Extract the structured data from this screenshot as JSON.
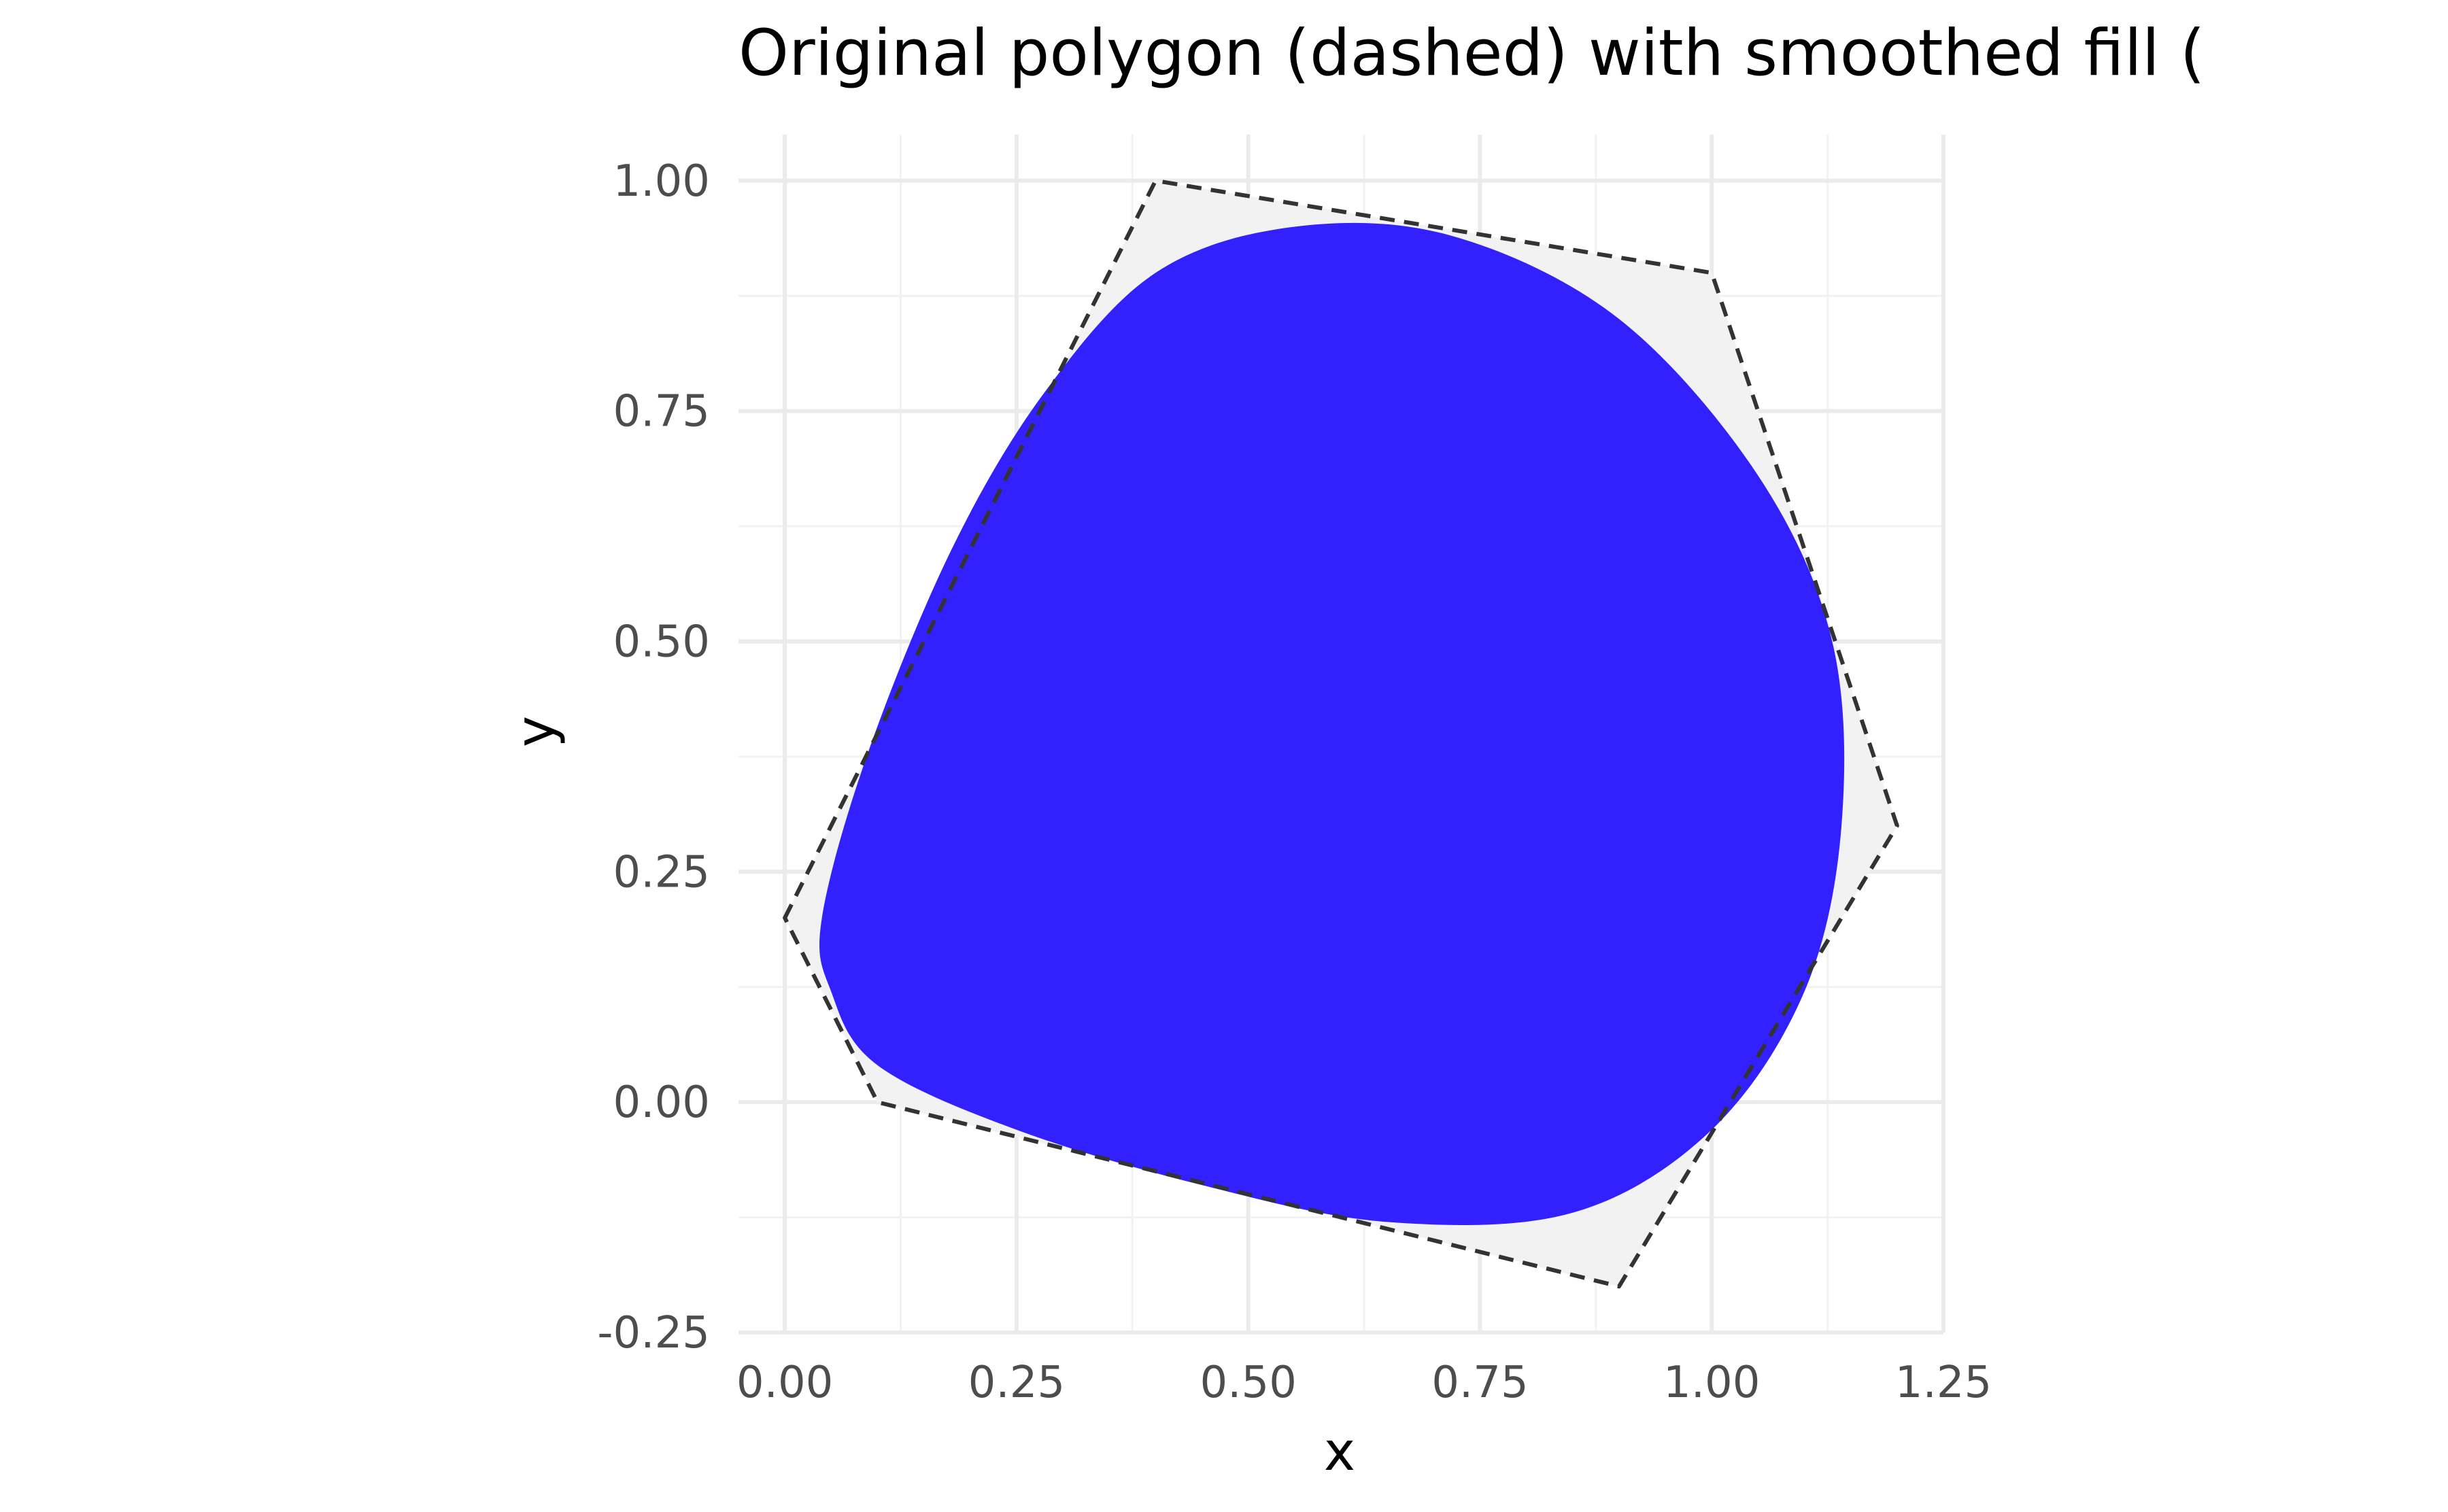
{
  "chart_data": {
    "type": "area",
    "title": "Original polygon (dashed) with smoothed fill (",
    "xlabel": "x",
    "ylabel": "y",
    "xlim": [
      -0.05,
      1.25
    ],
    "ylim": [
      -0.25,
      1.05
    ],
    "x_ticks": [
      0.0,
      0.25,
      0.5,
      0.75,
      1.0,
      1.25
    ],
    "x_tick_labels": [
      "0.00",
      "0.25",
      "0.50",
      "0.75",
      "1.00",
      "1.25"
    ],
    "y_ticks": [
      -0.25,
      0.0,
      0.25,
      0.5,
      0.75,
      1.0
    ],
    "y_tick_labels": [
      "-0.25",
      "0.00",
      "0.25",
      "0.50",
      "0.75",
      "1.00"
    ],
    "grid": true,
    "legend": "none",
    "series": [
      {
        "role": "original polygon",
        "style": "dashed outline with light grey fill",
        "points": [
          [
            0.0,
            0.2
          ],
          [
            0.4,
            1.0
          ],
          [
            1.0,
            0.9
          ],
          [
            1.2,
            0.3
          ],
          [
            0.9,
            -0.2
          ],
          [
            0.1,
            0.0
          ]
        ]
      },
      {
        "role": "smoothed fill",
        "style": "solid blue fill",
        "points": [
          [
            0.05,
            0.12
          ],
          [
            0.04,
            0.2
          ],
          [
            0.09,
            0.38
          ],
          [
            0.18,
            0.6
          ],
          [
            0.28,
            0.77
          ],
          [
            0.4,
            0.9
          ],
          [
            0.55,
            0.95
          ],
          [
            0.72,
            0.94
          ],
          [
            0.9,
            0.85
          ],
          [
            1.05,
            0.68
          ],
          [
            1.13,
            0.5
          ],
          [
            1.14,
            0.3
          ],
          [
            1.1,
            0.12
          ],
          [
            1.0,
            -0.03
          ],
          [
            0.85,
            -0.12
          ],
          [
            0.65,
            -0.13
          ],
          [
            0.45,
            -0.09
          ],
          [
            0.25,
            -0.03
          ],
          [
            0.1,
            0.04
          ]
        ]
      }
    ],
    "colors": {
      "smoothed_fill": "#3220ff",
      "polygon_fill": "#f2f2f2",
      "polygon_stroke": "#333333",
      "grid_major": "#ebebeb",
      "grid_minor": "#f2f2f2",
      "tick_text": "#4d4d4d"
    }
  }
}
